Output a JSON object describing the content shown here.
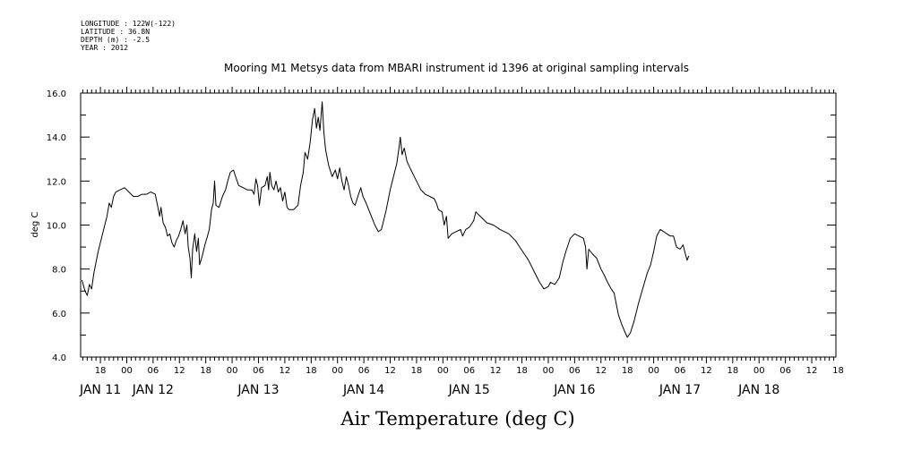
{
  "header": {
    "longitude": "LONGITUDE : 122W(-122)",
    "latitude": "LATITUDE : 36.8N",
    "depth": "DEPTH (m) : -2.5",
    "year": "YEAR : 2012"
  },
  "chart_data": {
    "type": "line",
    "title": "Mooring M1 Metsys data from MBARI instrument id 1396 at original sampling intervals",
    "xlabel": "Air Temperature (deg C)",
    "ylabel": "deg C",
    "ylim": [
      4.0,
      16.0
    ],
    "yticks": [
      "4.0",
      "6.0",
      "8.0",
      "10.0",
      "12.0",
      "14.0",
      "16.0"
    ],
    "xlim_hours": [
      -10.5,
      161.5
    ],
    "x_hour_ticks": [
      {
        "h": -6,
        "label": "18"
      },
      {
        "h": 0,
        "label": "00"
      },
      {
        "h": 6,
        "label": "06"
      },
      {
        "h": 12,
        "label": "12"
      },
      {
        "h": 18,
        "label": "18"
      },
      {
        "h": 24,
        "label": "00"
      },
      {
        "h": 30,
        "label": "06"
      },
      {
        "h": 36,
        "label": "12"
      },
      {
        "h": 42,
        "label": "18"
      },
      {
        "h": 48,
        "label": "00"
      },
      {
        "h": 54,
        "label": "06"
      },
      {
        "h": 60,
        "label": "12"
      },
      {
        "h": 66,
        "label": "18"
      },
      {
        "h": 72,
        "label": "00"
      },
      {
        "h": 78,
        "label": "06"
      },
      {
        "h": 84,
        "label": "12"
      },
      {
        "h": 90,
        "label": "18"
      },
      {
        "h": 96,
        "label": "00"
      },
      {
        "h": 102,
        "label": "06"
      },
      {
        "h": 108,
        "label": "12"
      },
      {
        "h": 114,
        "label": "18"
      },
      {
        "h": 120,
        "label": "00"
      },
      {
        "h": 126,
        "label": "06"
      },
      {
        "h": 132,
        "label": "12"
      },
      {
        "h": 138,
        "label": "18"
      },
      {
        "h": 144,
        "label": "00"
      },
      {
        "h": 150,
        "label": "06"
      },
      {
        "h": 156,
        "label": "12"
      },
      {
        "h": 162,
        "label": "18"
      }
    ],
    "x_day_labels": [
      {
        "h": -6,
        "label": "JAN 11"
      },
      {
        "h": 6,
        "label": "JAN 12"
      },
      {
        "h": 30,
        "label": "JAN 13"
      },
      {
        "h": 54,
        "label": "JAN 14"
      },
      {
        "h": 78,
        "label": "JAN 15"
      },
      {
        "h": 102,
        "label": "JAN 16"
      },
      {
        "h": 126,
        "label": "JAN 17"
      },
      {
        "h": 144,
        "label": "JAN 18"
      }
    ],
    "series": [
      {
        "color": "#000000",
        "points": [
          [
            -10.2,
            7.5
          ],
          [
            -9.5,
            7.0
          ],
          [
            -9.0,
            6.8
          ],
          [
            -8.5,
            7.3
          ],
          [
            -8.0,
            7.1
          ],
          [
            -7.5,
            7.8
          ],
          [
            -6.5,
            8.8
          ],
          [
            -5.5,
            9.6
          ],
          [
            -4.5,
            10.4
          ],
          [
            -4.0,
            11.0
          ],
          [
            -3.5,
            10.8
          ],
          [
            -3.0,
            11.3
          ],
          [
            -2.5,
            11.5
          ],
          [
            -1.5,
            11.6
          ],
          [
            -0.5,
            11.7
          ],
          [
            0.5,
            11.5
          ],
          [
            1.5,
            11.3
          ],
          [
            2.5,
            11.3
          ],
          [
            3.5,
            11.4
          ],
          [
            4.5,
            11.4
          ],
          [
            5.5,
            11.5
          ],
          [
            6.5,
            11.4
          ],
          [
            7.0,
            10.9
          ],
          [
            7.5,
            10.4
          ],
          [
            7.8,
            10.8
          ],
          [
            8.3,
            10.1
          ],
          [
            8.8,
            9.9
          ],
          [
            9.3,
            9.5
          ],
          [
            9.8,
            9.6
          ],
          [
            10.3,
            9.2
          ],
          [
            10.8,
            9.0
          ],
          [
            11.3,
            9.3
          ],
          [
            11.8,
            9.5
          ],
          [
            12.3,
            9.8
          ],
          [
            12.8,
            10.2
          ],
          [
            13.3,
            9.6
          ],
          [
            13.7,
            10.0
          ],
          [
            14.0,
            9.0
          ],
          [
            14.4,
            8.5
          ],
          [
            14.7,
            7.6
          ],
          [
            15.0,
            8.9
          ],
          [
            15.5,
            9.6
          ],
          [
            15.9,
            8.8
          ],
          [
            16.3,
            9.4
          ],
          [
            16.6,
            8.2
          ],
          [
            17.2,
            8.6
          ],
          [
            17.8,
            9.1
          ],
          [
            18.4,
            9.5
          ],
          [
            18.8,
            9.8
          ],
          [
            19.3,
            10.7
          ],
          [
            19.7,
            11.0
          ],
          [
            20.0,
            12.0
          ],
          [
            20.3,
            10.9
          ],
          [
            21.0,
            10.8
          ],
          [
            21.8,
            11.3
          ],
          [
            22.5,
            11.6
          ],
          [
            23.0,
            12.0
          ],
          [
            23.6,
            12.4
          ],
          [
            24.3,
            12.5
          ],
          [
            24.8,
            12.2
          ],
          [
            25.5,
            11.8
          ],
          [
            26.5,
            11.7
          ],
          [
            27.5,
            11.6
          ],
          [
            28.5,
            11.6
          ],
          [
            29.0,
            11.4
          ],
          [
            29.4,
            12.1
          ],
          [
            29.8,
            11.8
          ],
          [
            30.2,
            10.9
          ],
          [
            30.7,
            11.7
          ],
          [
            31.5,
            11.8
          ],
          [
            32.0,
            12.2
          ],
          [
            32.3,
            11.6
          ],
          [
            32.6,
            12.4
          ],
          [
            33.0,
            11.8
          ],
          [
            33.5,
            11.6
          ],
          [
            34.0,
            12.0
          ],
          [
            34.5,
            11.5
          ],
          [
            35.0,
            11.7
          ],
          [
            35.5,
            11.1
          ],
          [
            36.0,
            11.5
          ],
          [
            36.5,
            10.8
          ],
          [
            37.0,
            10.7
          ],
          [
            38.0,
            10.7
          ],
          [
            39.0,
            10.9
          ],
          [
            39.6,
            11.8
          ],
          [
            40.2,
            12.4
          ],
          [
            40.6,
            13.3
          ],
          [
            41.2,
            13.0
          ],
          [
            41.8,
            13.8
          ],
          [
            42.3,
            14.8
          ],
          [
            42.8,
            15.3
          ],
          [
            43.2,
            14.4
          ],
          [
            43.6,
            14.9
          ],
          [
            44.0,
            14.3
          ],
          [
            44.5,
            15.6
          ],
          [
            44.9,
            14.2
          ],
          [
            45.3,
            13.4
          ],
          [
            46.0,
            12.7
          ],
          [
            46.8,
            12.2
          ],
          [
            47.5,
            12.5
          ],
          [
            48.0,
            12.1
          ],
          [
            48.5,
            12.6
          ],
          [
            49.0,
            12.0
          ],
          [
            49.5,
            11.6
          ],
          [
            50.0,
            12.2
          ],
          [
            50.5,
            11.8
          ],
          [
            51.0,
            11.3
          ],
          [
            51.5,
            11.0
          ],
          [
            52.0,
            10.9
          ],
          [
            52.8,
            11.4
          ],
          [
            53.3,
            11.7
          ],
          [
            53.8,
            11.3
          ],
          [
            54.5,
            11.0
          ],
          [
            55.5,
            10.5
          ],
          [
            56.5,
            10.0
          ],
          [
            57.3,
            9.7
          ],
          [
            58.0,
            9.8
          ],
          [
            59.0,
            10.6
          ],
          [
            60.0,
            11.6
          ],
          [
            61.0,
            12.4
          ],
          [
            61.5,
            12.8
          ],
          [
            62.0,
            13.5
          ],
          [
            62.3,
            14.0
          ],
          [
            62.7,
            13.2
          ],
          [
            63.2,
            13.5
          ],
          [
            63.8,
            12.9
          ],
          [
            64.5,
            12.6
          ],
          [
            65.0,
            12.4
          ],
          [
            66.0,
            12.0
          ],
          [
            67.0,
            11.6
          ],
          [
            68.0,
            11.4
          ],
          [
            69.0,
            11.3
          ],
          [
            70.0,
            11.2
          ],
          [
            70.5,
            11.0
          ],
          [
            71.0,
            10.7
          ],
          [
            71.8,
            10.6
          ],
          [
            72.3,
            10.0
          ],
          [
            72.8,
            10.4
          ],
          [
            73.2,
            9.4
          ],
          [
            74.0,
            9.6
          ],
          [
            75.0,
            9.7
          ],
          [
            76.0,
            9.8
          ],
          [
            76.5,
            9.5
          ],
          [
            77.2,
            9.8
          ],
          [
            78.0,
            9.9
          ],
          [
            79.0,
            10.2
          ],
          [
            79.5,
            10.6
          ],
          [
            80.5,
            10.4
          ],
          [
            82.0,
            10.1
          ],
          [
            83.5,
            10.0
          ],
          [
            85.0,
            9.8
          ],
          [
            87.0,
            9.6
          ],
          [
            88.5,
            9.3
          ],
          [
            89.5,
            9.0
          ],
          [
            90.5,
            8.7
          ],
          [
            91.5,
            8.4
          ],
          [
            93.0,
            7.8
          ],
          [
            94.0,
            7.4
          ],
          [
            95.0,
            7.1
          ],
          [
            96.0,
            7.2
          ],
          [
            96.5,
            7.4
          ],
          [
            97.5,
            7.3
          ],
          [
            98.5,
            7.6
          ],
          [
            99.3,
            8.3
          ],
          [
            100.0,
            8.8
          ],
          [
            101.0,
            9.4
          ],
          [
            102.0,
            9.6
          ],
          [
            103.0,
            9.5
          ],
          [
            104.0,
            9.4
          ],
          [
            104.5,
            9.0
          ],
          [
            104.8,
            8.0
          ],
          [
            105.2,
            8.9
          ],
          [
            106.0,
            8.7
          ],
          [
            107.0,
            8.5
          ],
          [
            108.0,
            8.0
          ],
          [
            108.8,
            7.7
          ],
          [
            109.5,
            7.4
          ],
          [
            110.3,
            7.1
          ],
          [
            111.0,
            6.9
          ],
          [
            111.5,
            6.4
          ],
          [
            112.0,
            5.9
          ],
          [
            112.7,
            5.5
          ],
          [
            113.3,
            5.2
          ],
          [
            114.0,
            4.9
          ],
          [
            114.7,
            5.1
          ],
          [
            115.5,
            5.6
          ],
          [
            116.5,
            6.4
          ],
          [
            117.5,
            7.1
          ],
          [
            118.5,
            7.8
          ],
          [
            119.3,
            8.2
          ],
          [
            120.0,
            8.8
          ],
          [
            120.7,
            9.5
          ],
          [
            121.5,
            9.8
          ],
          [
            122.3,
            9.7
          ],
          [
            123.0,
            9.6
          ],
          [
            123.8,
            9.5
          ],
          [
            124.5,
            9.5
          ],
          [
            125.2,
            9.0
          ],
          [
            126.0,
            8.9
          ],
          [
            126.7,
            9.1
          ],
          [
            127.2,
            8.7
          ],
          [
            127.6,
            8.4
          ],
          [
            128.0,
            8.6
          ]
        ]
      }
    ]
  }
}
